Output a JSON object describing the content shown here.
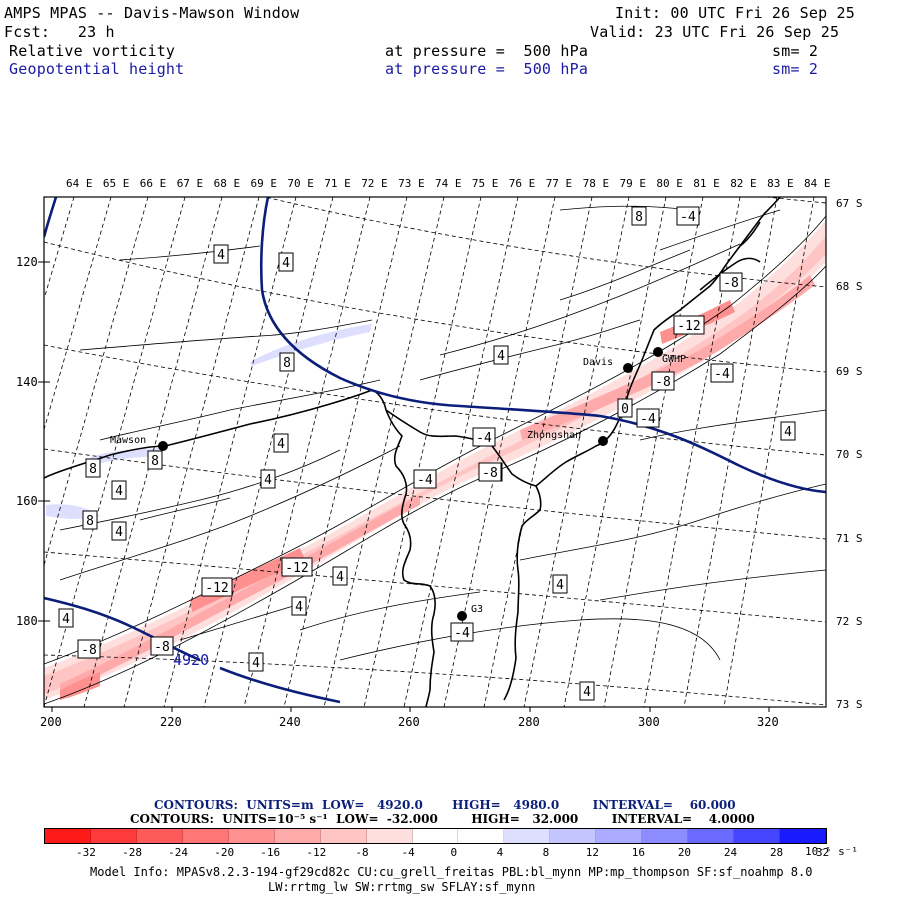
{
  "header": {
    "title": "AMPS MPAS -- Davis-Mawson Window",
    "init": "Init: 00 UTC Fri 26 Sep 25",
    "forecast": "Fcst:   23 h",
    "valid": "Valid: 23 UTC Fri 26 Sep 25",
    "field1_name": "Relative vorticity",
    "field1_level": "at pressure =  500 hPa",
    "field1_smooth": "sm= 2",
    "field2_name": "Geopotential height",
    "field2_level": "at pressure =  500 hPa",
    "field2_smooth": "sm= 2"
  },
  "map": {
    "longitude_labels": [
      "64 E",
      "65 E",
      "66 E",
      "67 E",
      "68 E",
      "69 E",
      "70 E",
      "71 E",
      "72 E",
      "73 E",
      "74 E",
      "75 E",
      "76 E",
      "77 E",
      "78 E",
      "79 E",
      "80 E",
      "81 E",
      "82 E",
      "83 E",
      "84 E"
    ],
    "latitude_labels": [
      "67 S",
      "68 S",
      "69 S",
      "70 S",
      "71 S",
      "72 S",
      "73 S"
    ],
    "y_axis_ticks": [
      "120",
      "140",
      "160",
      "180"
    ],
    "x_axis_ticks": [
      "200",
      "220",
      "240",
      "260",
      "280",
      "300",
      "320"
    ],
    "stations": [
      {
        "name": "Mawson"
      },
      {
        "name": "Davis"
      },
      {
        "name": "GWHP"
      },
      {
        "name": "Zhongshan"
      },
      {
        "name": "G3"
      }
    ],
    "height_contour_label": "4920",
    "vorticity_labels": [
      "4",
      "4",
      "4",
      "4",
      "4",
      "4",
      "4",
      "4",
      "4",
      "4",
      "4",
      "4",
      "4",
      "4",
      "8",
      "8",
      "8",
      "8",
      "8",
      "-4",
      "-4",
      "-4",
      "-4",
      "-4",
      "-4",
      "-8",
      "-8",
      "-8",
      "-8",
      "-8",
      "-12",
      "-12",
      "-12",
      "-8",
      "0"
    ]
  },
  "contours": {
    "line1": "CONTOURS:  UNITS=m  LOW=   4920.0       HIGH=   4980.0        INTERVAL=    60.000",
    "line2": "CONTOURS:  UNITS=10⁻⁵ s⁻¹  LOW=  -32.000        HIGH=   32.000        INTERVAL=    4.0000"
  },
  "colorbar": {
    "labels": [
      "-32",
      "-28",
      "-24",
      "-20",
      "-16",
      "-12",
      "-8",
      "-4",
      "0",
      "4",
      "8",
      "12",
      "16",
      "20",
      "24",
      "28",
      "32"
    ],
    "unit": "10⁻⁵ s⁻¹",
    "colors": [
      "#ff1a1a",
      "#ff3b3b",
      "#ff5a5a",
      "#ff7676",
      "#ff9090",
      "#ffaaaa",
      "#ffc4c4",
      "#ffdede",
      "#ffffff",
      "#ffffff",
      "#dedeff",
      "#c4c4ff",
      "#aaaaff",
      "#8c8cff",
      "#6a6aff",
      "#4646ff",
      "#1a1aff"
    ]
  },
  "model_info": {
    "line1": "Model Info: MPASv8.2.3-194-gf29cd82c CU:cu_grell_freitas PBL:bl_mynn MP:mp_thompson SF:sf_noahmp 8.0",
    "line2": "LW:rrtmg_lw SW:rrtmg_sw SFLAY:sf_mynn"
  }
}
